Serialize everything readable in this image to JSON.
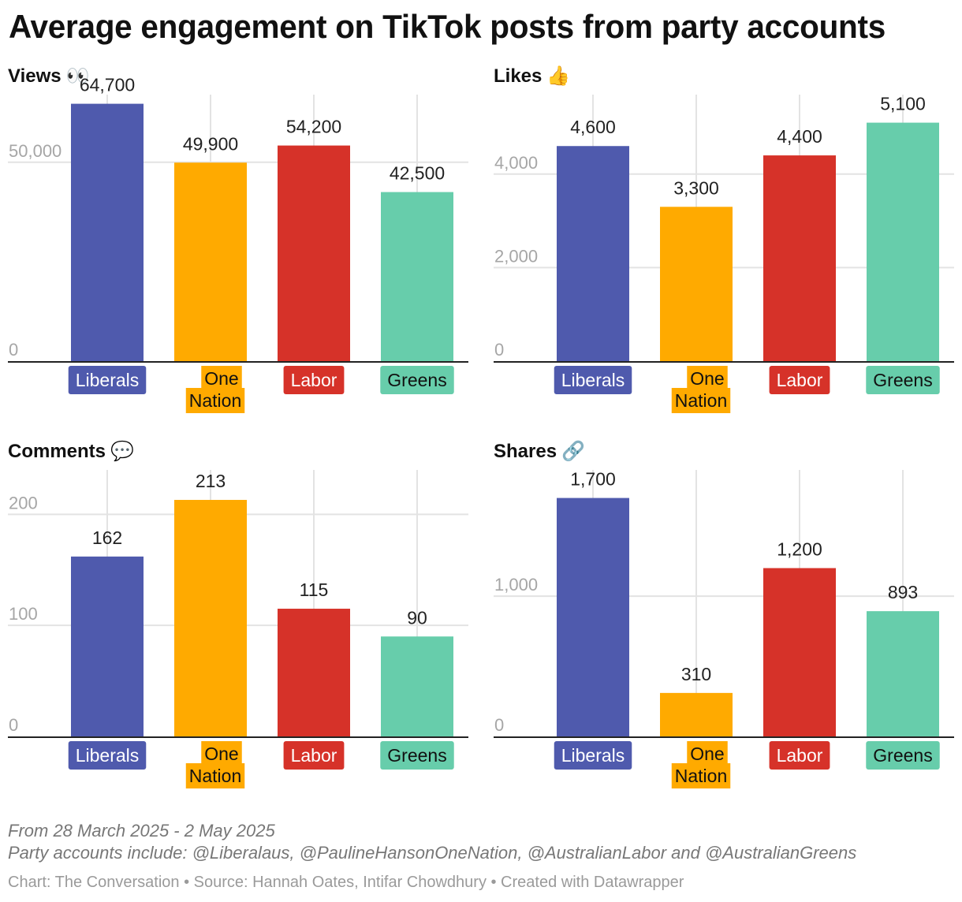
{
  "title": "Average engagement on TikTok posts from party accounts",
  "party_colors": {
    "Liberals": "#4f5aad",
    "One Nation": "#ffaa00",
    "Labor": "#d63229",
    "Greens": "#67cdab"
  },
  "chart_data": [
    {
      "type": "bar",
      "title": "Views",
      "emoji": "👀",
      "categories": [
        "Liberals",
        "One Nation",
        "Labor",
        "Greens"
      ],
      "values": [
        64700,
        49900,
        54200,
        42500
      ],
      "value_labels": [
        "64,700",
        "49,900",
        "54,200",
        "42,500"
      ],
      "ylim": [
        0,
        67000
      ],
      "yticks": [
        0,
        50000
      ],
      "ytick_labels": [
        "0",
        "50,000"
      ],
      "xlabel": "",
      "ylabel": ""
    },
    {
      "type": "bar",
      "title": "Likes",
      "emoji": "👍",
      "categories": [
        "Liberals",
        "One Nation",
        "Labor",
        "Greens"
      ],
      "values": [
        4600,
        3300,
        4400,
        5100
      ],
      "value_labels": [
        "4,600",
        "3,300",
        "4,400",
        "5,100"
      ],
      "ylim": [
        0,
        5700
      ],
      "yticks": [
        0,
        2000,
        4000
      ],
      "ytick_labels": [
        "0",
        "2,000",
        "4,000"
      ],
      "xlabel": "",
      "ylabel": ""
    },
    {
      "type": "bar",
      "title": "Comments",
      "emoji": "💬",
      "categories": [
        "Liberals",
        "One Nation",
        "Labor",
        "Greens"
      ],
      "values": [
        162,
        213,
        115,
        90
      ],
      "value_labels": [
        "162",
        "213",
        "115",
        "90"
      ],
      "ylim": [
        0,
        240
      ],
      "yticks": [
        0,
        100,
        200
      ],
      "ytick_labels": [
        "0",
        "100",
        "200"
      ],
      "xlabel": "",
      "ylabel": ""
    },
    {
      "type": "bar",
      "title": "Shares",
      "emoji": "🔗",
      "categories": [
        "Liberals",
        "One Nation",
        "Labor",
        "Greens"
      ],
      "values": [
        1700,
        310,
        1200,
        893
      ],
      "value_labels": [
        "1,700",
        "310",
        "1,200",
        "893"
      ],
      "ylim": [
        0,
        1900
      ],
      "yticks": [
        0,
        1000
      ],
      "ytick_labels": [
        "0",
        "1,000"
      ],
      "xlabel": "",
      "ylabel": ""
    }
  ],
  "footer": {
    "date_range": "From 28 March 2025 - 2 May 2025",
    "accounts_note": "Party accounts include: @Liberalaus, @PaulineHansonOneNation, @AustralianLabor and @AustralianGreens",
    "credit": "Chart: The Conversation • Source: Hannah Oates, Intifar Chowdhury • Created with Datawrapper"
  }
}
